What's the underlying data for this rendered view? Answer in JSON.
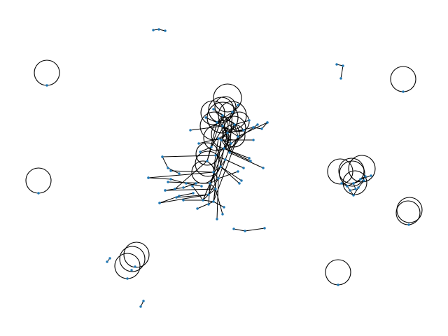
{
  "figure": {
    "kind": "network-graph-drawing",
    "background": "#ffffff",
    "edge_color": "#000000",
    "node_color": "#1f77b4",
    "axes_visible": false,
    "labels_visible": false
  }
}
